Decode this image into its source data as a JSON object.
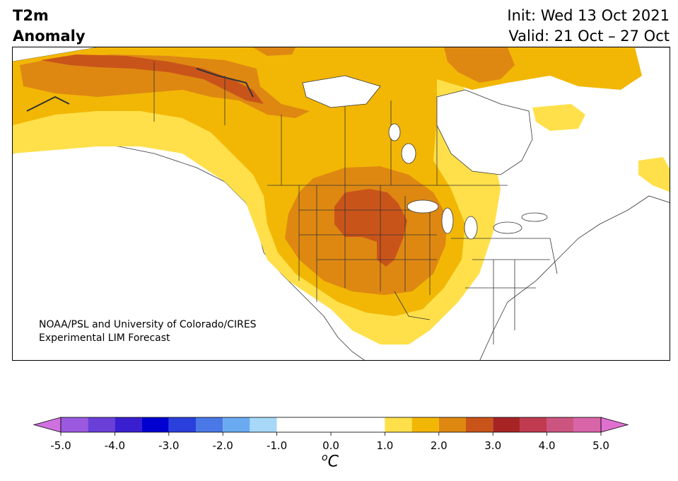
{
  "header": {
    "title_line1": "T2m",
    "title_line2": "Anomaly",
    "init_text": "Init: Wed 13 Oct 2021",
    "valid_text": "Valid: 21 Oct – 27 Oct"
  },
  "map": {
    "region": "North America",
    "variable": "2m temperature anomaly",
    "credit_line1": "NOAA/PSL and University of Colorado/CIRES",
    "credit_line2": "Experimental LIM Forecast",
    "background": "#ffffff",
    "boundary_color": "#333333"
  },
  "colorbar": {
    "unit_o": "o",
    "unit_c": "C",
    "ticks": [
      "-5.0",
      "-4.0",
      "-3.0",
      "-2.0",
      "-1.0",
      "0.0",
      "1.0",
      "2.0",
      "3.0",
      "4.0",
      "5.0"
    ],
    "tick_values": [
      -5,
      -4,
      -3,
      -2,
      -1,
      0,
      1,
      2,
      3,
      4,
      5
    ],
    "bins": [
      {
        "min": -5.0,
        "max": -4.5,
        "color": "#9b59e0"
      },
      {
        "min": -4.5,
        "max": -4.0,
        "color": "#6a3fd8"
      },
      {
        "min": -4.0,
        "max": -3.5,
        "color": "#3a1fd0"
      },
      {
        "min": -3.5,
        "max": -3.0,
        "color": "#0000d0"
      },
      {
        "min": -3.0,
        "max": -2.5,
        "color": "#2a3fdc"
      },
      {
        "min": -2.5,
        "max": -2.0,
        "color": "#4a78e6"
      },
      {
        "min": -2.0,
        "max": -1.5,
        "color": "#6aaaf0"
      },
      {
        "min": -1.5,
        "max": -1.0,
        "color": "#a8d8f8"
      },
      {
        "min": -1.0,
        "max": 0.0,
        "color": "#ffffff"
      },
      {
        "min": 0.0,
        "max": 1.0,
        "color": "#ffffff"
      },
      {
        "min": 1.0,
        "max": 1.5,
        "color": "#ffe04a"
      },
      {
        "min": 1.5,
        "max": 2.0,
        "color": "#f2b705"
      },
      {
        "min": 2.0,
        "max": 2.5,
        "color": "#de8812"
      },
      {
        "min": 2.5,
        "max": 3.0,
        "color": "#c9541a"
      },
      {
        "min": 3.0,
        "max": 3.5,
        "color": "#a82424"
      },
      {
        "min": 3.5,
        "max": 4.0,
        "color": "#c03a50"
      },
      {
        "min": 4.0,
        "max": 4.5,
        "color": "#cc5580"
      },
      {
        "min": 4.5,
        "max": 5.0,
        "color": "#d865a8"
      }
    ],
    "extend_low_color": "#d070e0",
    "extend_high_color": "#e070d0"
  },
  "anomaly_colors": {
    "lvl1": "#ffe04a",
    "lvl2": "#f2b705",
    "lvl3": "#de8812",
    "lvl4": "#c9541a"
  }
}
